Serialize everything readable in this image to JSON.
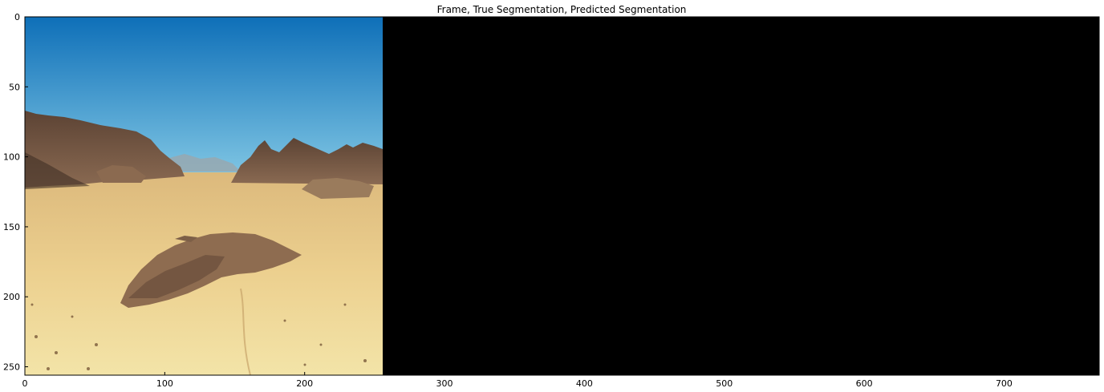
{
  "figure": {
    "title": "Frame, True Segmentation, Predicted Segmentation"
  },
  "panels": [
    {
      "name": "Frame",
      "x_range": [
        0,
        256
      ]
    },
    {
      "name": "True Segmentation",
      "x_range": [
        256,
        512
      ]
    },
    {
      "name": "Predicted Segmentation",
      "x_range": [
        512,
        768
      ]
    }
  ],
  "axes": {
    "x_ticks": [
      0,
      100,
      200,
      300,
      400,
      500,
      600,
      700
    ],
    "y_ticks": [
      0,
      50,
      100,
      150,
      200,
      250
    ],
    "xlim": [
      0,
      768
    ],
    "ylim": [
      256,
      0
    ]
  },
  "colors": {
    "sky_top": "#0e6fb8",
    "sky_bottom": "#7fc6e6",
    "rock": "#6b5040",
    "sand": "#e8c884",
    "sand_light": "#f2e2a6",
    "mask": "#000000"
  }
}
